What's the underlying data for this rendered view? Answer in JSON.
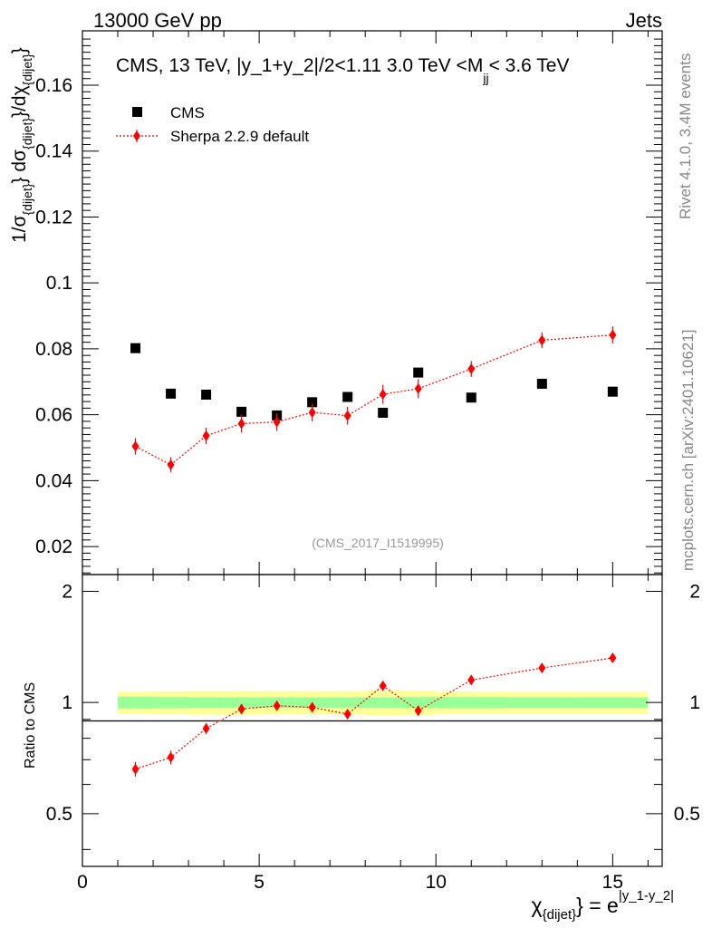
{
  "header": {
    "left": "13000 GeV pp",
    "right": "Jets"
  },
  "side_labels": {
    "rivet": "Rivet 4.1.0,  3.4M events",
    "mcplots": "mcplots.cern.ch [arXiv:2401.10621]"
  },
  "chart_data": {
    "type": "scatter",
    "title": "CMS, 13 TeV, |y_1+y_2|/2<1.11 3.0 TeV <M",
    "title_subscript": "jj",
    "title_suffix": "< 3.6 TeV",
    "watermark": "(CMS_2017_I1519995)",
    "xlabel": {
      "main": "χ",
      "sub": "{dijet}",
      "mid": "} = e",
      "sup": "|y_1-y_2|"
    },
    "ylabel": {
      "p1": "1/σ",
      "s1": "{dijet}",
      "p2": "} dσ",
      "s2": "{dijet}",
      "p3": "}/dχ",
      "s3": "{dijet}",
      "p4": "}"
    },
    "ratio_ylabel": "Ratio to CMS",
    "xlim": [
      0,
      16.4
    ],
    "ylim": [
      0.0115,
      0.1765
    ],
    "ratio_ylim": [
      0.36,
      2.22
    ],
    "x_ticks": [
      "0",
      "5",
      "10",
      "15"
    ],
    "y_ticks": [
      "0.02",
      "0.04",
      "0.06",
      "0.08",
      "0.1",
      "0.12",
      "0.14",
      "0.16"
    ],
    "ratio_ticks": [
      "0.5",
      "1",
      "2"
    ],
    "legend": [
      "CMS",
      "Sherpa 2.2.9 default"
    ],
    "series": [
      {
        "name": "CMS",
        "x": [
          1.5,
          2.5,
          3.5,
          4.5,
          5.5,
          6.5,
          7.5,
          8.5,
          9.5,
          11.0,
          13.0,
          15.0
        ],
        "values": [
          0.0802,
          0.0664,
          0.0661,
          0.0609,
          0.0598,
          0.0638,
          0.0654,
          0.0606,
          0.0728,
          0.0652,
          0.0694,
          0.067
        ],
        "band_edges": [
          1.0,
          2.0,
          3.0,
          4.0,
          5.0,
          6.0,
          7.0,
          8.0,
          9.0,
          10.0,
          12.0,
          14.0,
          16.0
        ],
        "stat_unc": [
          0.073,
          0.069,
          0.066,
          0.066,
          0.066,
          0.066,
          0.066,
          0.066,
          0.069,
          0.069,
          0.066,
          0.066
        ],
        "total_unc": [
          0.139,
          0.142,
          0.148,
          0.148,
          0.145,
          0.145,
          0.145,
          0.158,
          0.152,
          0.139,
          0.139,
          0.139
        ]
      },
      {
        "name": "Sherpa 2.2.9 default",
        "color": "#ff0000",
        "x": [
          1.5,
          2.5,
          3.5,
          4.5,
          5.5,
          6.5,
          7.5,
          8.5,
          9.5,
          11.0,
          13.0,
          15.0
        ],
        "values": [
          0.0504,
          0.0448,
          0.0536,
          0.0573,
          0.0578,
          0.0607,
          0.0597,
          0.0662,
          0.0679,
          0.0739,
          0.0826,
          0.0842
        ],
        "errors": [
          0.0025,
          0.0023,
          0.0025,
          0.0027,
          0.0027,
          0.0027,
          0.0027,
          0.0029,
          0.0029,
          0.0024,
          0.0024,
          0.0026
        ],
        "ratio": [
          0.66,
          0.71,
          0.85,
          0.96,
          0.98,
          0.97,
          0.93,
          1.11,
          0.95,
          1.15,
          1.24,
          1.32
        ],
        "ratio_errors": [
          0.03,
          0.03,
          0.03,
          0.03,
          0.03,
          0.03,
          0.03,
          0.03,
          0.03,
          0.02,
          0.02,
          0.02
        ]
      }
    ]
  }
}
